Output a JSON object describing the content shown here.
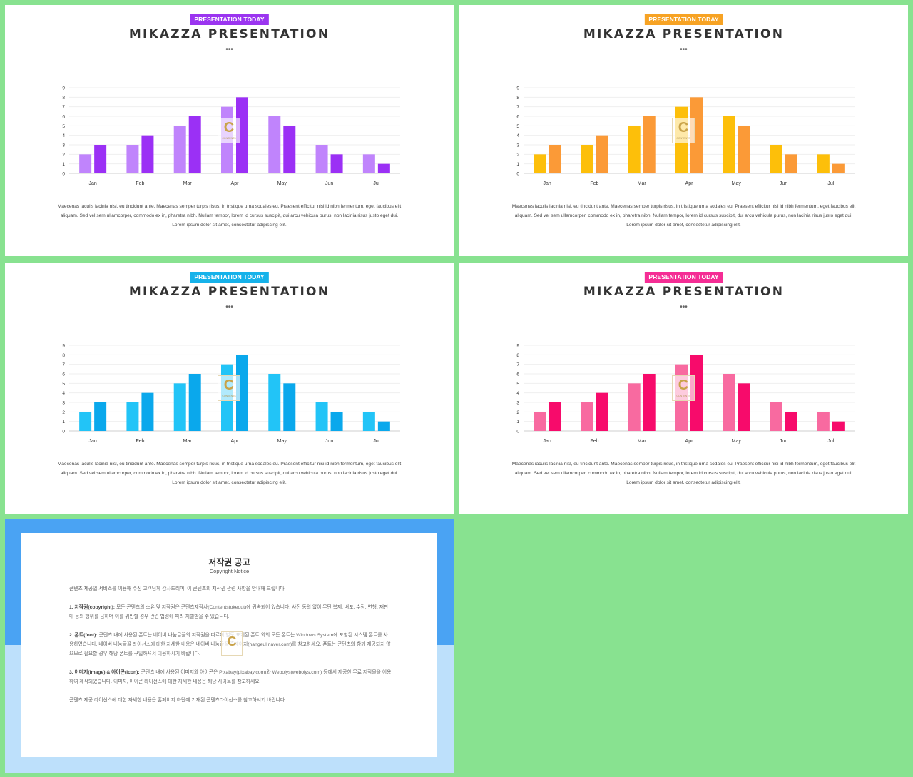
{
  "slides": [
    {
      "badge": "PRESENTATION TODAY",
      "title": "MIKAZZA PRESENTATION",
      "dots": "•••",
      "accent1": "#c084fc",
      "accent2": "#9b30f5",
      "badge_color": "#9b35f0"
    },
    {
      "badge": "PRESENTATION TODAY",
      "title": "MIKAZZA PRESENTATION",
      "dots": "•••",
      "accent1": "#fdbf0a",
      "accent2": "#fb9a37",
      "badge_color": "#f7a324"
    },
    {
      "badge": "PRESENTATION TODAY",
      "title": "MIKAZZA PRESENTATION",
      "dots": "•••",
      "accent1": "#22c4f7",
      "accent2": "#0aa8ec",
      "badge_color": "#16b2ea"
    },
    {
      "badge": "PRESENTATION TODAY",
      "title": "MIKAZZA PRESENTATION",
      "dots": "•••",
      "accent1": "#f86aa0",
      "accent2": "#f70b6b",
      "badge_color": "#f52d95"
    }
  ],
  "body_text": "Maecenas iaculis lacinia nisl, eu tincidunt ante. Maecenas semper turpis risus, in tristique urna sodales eu. Praesent efficitur nisi id nibh fermentum, eget faucibus elit aliquam. Sed vel sem ullamcorper, commodo ex in, pharetra nibh. Nullam tempor, lorem id cursus suscipit, dui arcu vehicula purus, non lacinia risus justo eget dui. Lorem ipsum dolor sit amet, consectetur adipiscing elit.",
  "watermark": {
    "letter": "C",
    "text": "CONTENTS"
  },
  "chart_data": [
    {
      "type": "bar",
      "categories": [
        "Jan",
        "Feb",
        "Mar",
        "Apr",
        "May",
        "Jun",
        "Jul"
      ],
      "series": [
        {
          "values": [
            2,
            3,
            5,
            7,
            6,
            3,
            2
          ]
        },
        {
          "values": [
            3,
            4,
            6,
            8,
            5,
            2,
            1
          ]
        }
      ],
      "ylim": [
        0,
        9
      ],
      "yticks": [
        0,
        1,
        2,
        3,
        4,
        5,
        6,
        7,
        8,
        9
      ],
      "grid": true,
      "xlabel": "",
      "ylabel": "",
      "title": ""
    },
    {
      "type": "bar",
      "categories": [
        "Jan",
        "Feb",
        "Mar",
        "Apr",
        "May",
        "Jun",
        "Jul"
      ],
      "series": [
        {
          "values": [
            2,
            3,
            5,
            7,
            6,
            3,
            2
          ]
        },
        {
          "values": [
            3,
            4,
            6,
            8,
            5,
            2,
            1
          ]
        }
      ],
      "ylim": [
        0,
        9
      ],
      "yticks": [
        0,
        1,
        2,
        3,
        4,
        5,
        6,
        7,
        8,
        9
      ],
      "grid": true,
      "xlabel": "",
      "ylabel": "",
      "title": ""
    },
    {
      "type": "bar",
      "categories": [
        "Jan",
        "Feb",
        "Mar",
        "Apr",
        "May",
        "Jun",
        "Jul"
      ],
      "series": [
        {
          "values": [
            2,
            3,
            5,
            7,
            6,
            3,
            2
          ]
        },
        {
          "values": [
            3,
            4,
            6,
            8,
            5,
            2,
            1
          ]
        }
      ],
      "ylim": [
        0,
        9
      ],
      "yticks": [
        0,
        1,
        2,
        3,
        4,
        5,
        6,
        7,
        8,
        9
      ],
      "grid": true,
      "xlabel": "",
      "ylabel": "",
      "title": ""
    },
    {
      "type": "bar",
      "categories": [
        "Jan",
        "Feb",
        "Mar",
        "Apr",
        "May",
        "Jun",
        "Jul"
      ],
      "series": [
        {
          "values": [
            2,
            3,
            5,
            7,
            6,
            3,
            2
          ]
        },
        {
          "values": [
            3,
            4,
            6,
            8,
            5,
            2,
            1
          ]
        }
      ],
      "ylim": [
        0,
        9
      ],
      "yticks": [
        0,
        1,
        2,
        3,
        4,
        5,
        6,
        7,
        8,
        9
      ],
      "grid": true,
      "xlabel": "",
      "ylabel": "",
      "title": ""
    }
  ],
  "notice": {
    "title": "저작권 공고",
    "subtitle": "Copyright Notice",
    "intro": "콘텐츠 제공업 서비스를 이용해 주신 고객님께 감사드리며, 이 콘텐츠의 저작권 관련 사항을 안내해 드립니다.",
    "p1_head": "1. 저작권(copyright):",
    "p1_text": " 모든 콘텐츠의 소유 및 저작권은 콘텐츠제작사(Contentstokeout)에 귀속되어 있습니다. 사전 동의 없이 무단 복제, 배포, 수정, 변형, 재판매 등의 행위를 금하며 이를 위반할 경우 관련 법령에 따라 처벌받을 수 있습니다.",
    "p2_head": "2. 폰트(font):",
    "p2_text": " 콘텐츠 내에 사용된 폰트는 네이버 나눔글꼴의 저작권을 따르며 별도 표기된 폰트 외의 모든 폰트는 Windows System에 포함된 시스템 폰트를 사용하였습니다. 네이버 나눔글꼴 라이선스에 대한 자세한 내용은 네이버 나눔글꼴 홈페이지(hangeul.naver.com)를 참고하세요. 폰트는 콘텐츠와 함께 제공되지 않으므로 필요할 경우 해당 폰트를 구입하셔서 이용하시기 바랍니다.",
    "p3_head": "3. 이미지(image) & 아이콘(icon):",
    "p3_text": " 콘텐츠 내에 사용된 이미지와 아이콘은 Pixabay(pixabay.com)와 Webolys(webolys.com) 등에서 제공한 무료 저작물을 이용하여 제작되었습니다. 이미지, 아이콘 라이선스에 대한 자세한 내용은 해당 사이트를 참고하세요.",
    "closing": "콘텐츠 제공 라이선스에 대한 자세한 내용은 홈페이지 하단에 기재된 콘텐츠라이선스를 참고하시기 바랍니다."
  }
}
